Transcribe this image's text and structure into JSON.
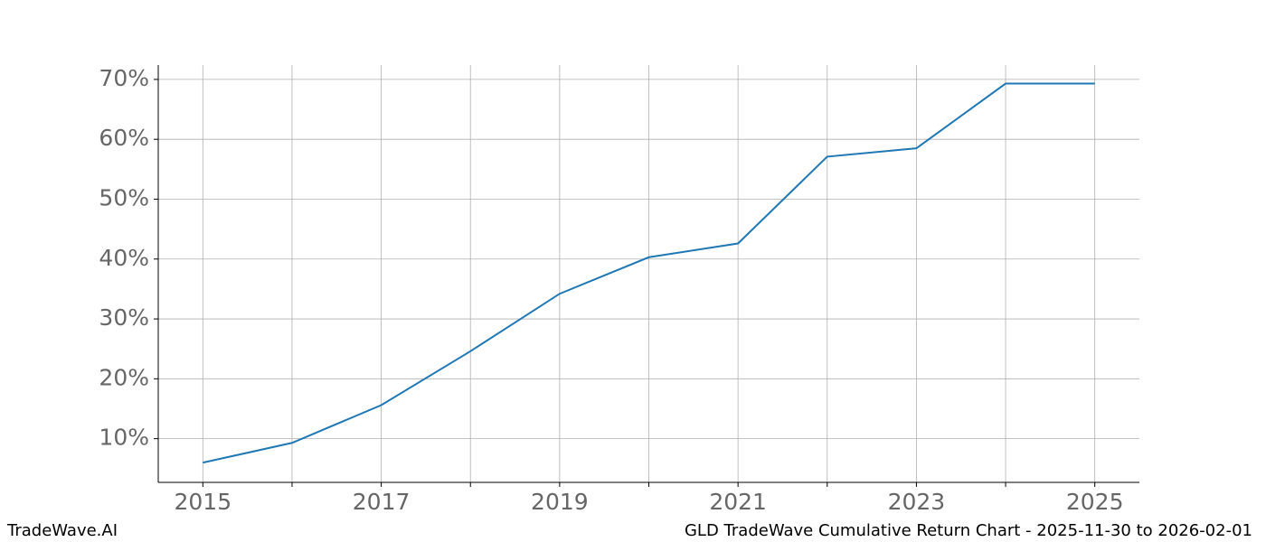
{
  "chart_data": {
    "type": "line",
    "title": "GLD TradeWave Cumulative Return Chart - 2025-11-30 to 2026-02-01",
    "watermark": "TradeWave.AI",
    "x": [
      2015,
      2016,
      2017,
      2018,
      2019,
      2020,
      2021,
      2022,
      2023,
      2024,
      2025
    ],
    "series": [
      {
        "color": "#1f77b4",
        "values": [
          6.0,
          9.3,
          15.6,
          24.6,
          34.2,
          40.3,
          42.6,
          57.1,
          58.5,
          69.3,
          69.3
        ]
      }
    ],
    "xlim": [
      2014.5,
      2025.5
    ],
    "xticks": [
      2015,
      2017,
      2019,
      2021,
      2023,
      2025
    ],
    "xminor_ticks": [
      2016,
      2018,
      2020,
      2022,
      2024
    ],
    "ylim": [
      2.7,
      72.4
    ],
    "yticks": [
      {
        "value": 10,
        "label": "10%"
      },
      {
        "value": 20,
        "label": "20%"
      },
      {
        "value": 30,
        "label": "30%"
      },
      {
        "value": 40,
        "label": "40%"
      },
      {
        "value": 50,
        "label": "50%"
      },
      {
        "value": 60,
        "label": "60%"
      },
      {
        "value": 70,
        "label": "70%"
      }
    ],
    "grid": true
  }
}
